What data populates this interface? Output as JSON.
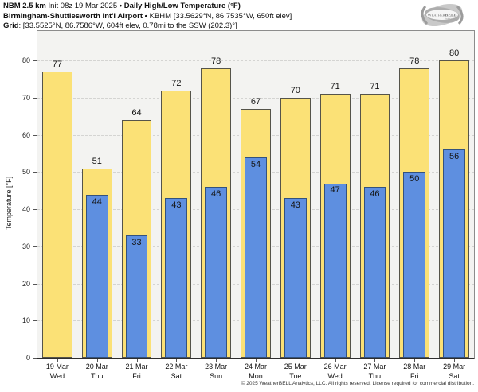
{
  "header": {
    "model": "NBM 2.5 km",
    "init": "Init 08z 19 Mar 2025",
    "sep": "•",
    "product": "Daily High/Low Temperature (°F)",
    "station": "Birmingham-Shuttlesworth Int'l Airport",
    "station_details": "KBHM [33.5629°N, 86.7535°W, 650ft elev]",
    "grid_label": "Grid",
    "grid_details": ": [33.5525°N, 86.7586°W, 604ft elev, 0.78mi to the SSW (202.3)°]"
  },
  "logo": {
    "name": "WeatherBELL",
    "subtext": "Analytics LLC"
  },
  "chart_data": {
    "type": "bar",
    "title": "Daily High/Low Temperature (°F)",
    "ylabel": "Temperature [°F]",
    "ylim": [
      0,
      88
    ],
    "yticks": [
      0,
      10,
      20,
      30,
      40,
      50,
      60,
      70,
      80
    ],
    "grid": "horizontal dashed",
    "legend": "none",
    "categories": [
      {
        "date": "19 Mar",
        "day": "Wed"
      },
      {
        "date": "20 Mar",
        "day": "Thu"
      },
      {
        "date": "21 Mar",
        "day": "Fri"
      },
      {
        "date": "22 Mar",
        "day": "Sat"
      },
      {
        "date": "23 Mar",
        "day": "Sun"
      },
      {
        "date": "24 Mar",
        "day": "Mon"
      },
      {
        "date": "25 Mar",
        "day": "Tue"
      },
      {
        "date": "26 Mar",
        "day": "Wed"
      },
      {
        "date": "27 Mar",
        "day": "Thu"
      },
      {
        "date": "28 Mar",
        "day": "Fri"
      },
      {
        "date": "29 Mar",
        "day": "Sat"
      }
    ],
    "series": [
      {
        "name": "Daily High",
        "color": "#fbe176",
        "border": "#55544a",
        "values": [
          77,
          51,
          64,
          72,
          78,
          67,
          70,
          71,
          71,
          78,
          80
        ]
      },
      {
        "name": "Daily Low",
        "color": "#5e8fe0",
        "border": "#33527d",
        "values": [
          null,
          44,
          33,
          43,
          46,
          54,
          43,
          47,
          46,
          50,
          56
        ]
      }
    ]
  },
  "footer": {
    "copyright": "© 2025 WeatherBELL Analytics, LLC. All rights reserved. License required for commercial distribution."
  }
}
